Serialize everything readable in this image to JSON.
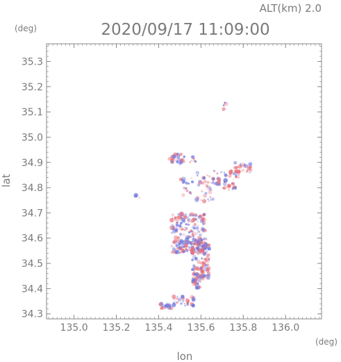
{
  "header": {
    "altitude_label": "ALT(km)  2.0",
    "timestamp": "2020/09/17 11:09:00"
  },
  "chart_data": {
    "type": "scatter",
    "title": "2020/09/17 11:09:00",
    "subtitle": "ALT(km)  2.0",
    "xlabel": "lon",
    "ylabel": "lat",
    "x_unit": "(deg)",
    "y_unit": "(deg)",
    "xlim": [
      134.87,
      136.17
    ],
    "ylim": [
      34.28,
      35.37
    ],
    "x_ticks": [
      "135.0",
      "135.2",
      "135.4",
      "135.6",
      "135.8",
      "136.0"
    ],
    "y_ticks": [
      "34.3",
      "34.4",
      "34.5",
      "34.6",
      "34.7",
      "34.8",
      "34.9",
      "35.0",
      "35.1",
      "35.2",
      "35.3"
    ],
    "colors": {
      "positive": "#e8707a",
      "negative": "#6f78e0",
      "frame": "#888888"
    },
    "clusters": [
      {
        "lon": 135.49,
        "lat": 34.915,
        "dlon": 0.05,
        "dlat": 0.02,
        "n": 28
      },
      {
        "lon": 135.56,
        "lat": 34.91,
        "dlon": 0.015,
        "dlat": 0.012,
        "n": 8
      },
      {
        "lon": 135.53,
        "lat": 34.8,
        "dlon": 0.03,
        "dlat": 0.04,
        "n": 18
      },
      {
        "lon": 135.62,
        "lat": 34.8,
        "dlon": 0.04,
        "dlat": 0.06,
        "n": 35
      },
      {
        "lon": 135.72,
        "lat": 34.83,
        "dlon": 0.06,
        "dlat": 0.04,
        "n": 45
      },
      {
        "lon": 135.8,
        "lat": 34.88,
        "dlon": 0.04,
        "dlat": 0.02,
        "n": 30
      },
      {
        "lon": 135.71,
        "lat": 35.12,
        "dlon": 0.01,
        "dlat": 0.02,
        "n": 5
      },
      {
        "lon": 135.3,
        "lat": 34.765,
        "dlon": 0.01,
        "dlat": 0.01,
        "n": 4
      },
      {
        "lon": 135.54,
        "lat": 34.62,
        "dlon": 0.08,
        "dlat": 0.08,
        "n": 200
      },
      {
        "lon": 135.6,
        "lat": 34.52,
        "dlon": 0.04,
        "dlat": 0.08,
        "n": 120
      },
      {
        "lon": 135.58,
        "lat": 34.42,
        "dlon": 0.02,
        "dlat": 0.02,
        "n": 25
      },
      {
        "lon": 135.52,
        "lat": 34.35,
        "dlon": 0.05,
        "dlat": 0.02,
        "n": 30
      },
      {
        "lon": 135.43,
        "lat": 34.33,
        "dlon": 0.03,
        "dlat": 0.01,
        "n": 18
      }
    ]
  }
}
